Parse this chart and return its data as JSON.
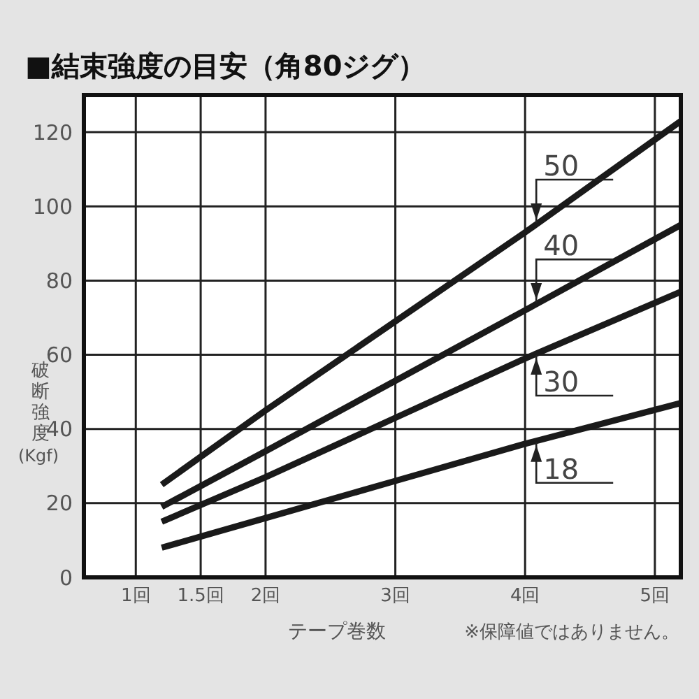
{
  "chart_data": {
    "type": "line",
    "title": "■結束強度の目安（角80ジグ）",
    "xlabel": "テープ巻数",
    "ylabel": "破断強度(Kgf)",
    "annotations": [
      "※保障値ではありません。"
    ],
    "x": [
      1.2,
      2,
      3,
      4,
      5.2
    ],
    "series": [
      {
        "name": "50",
        "color": "#1a1a1a",
        "values": [
          25,
          45,
          69,
          93,
          123
        ]
      },
      {
        "name": "40",
        "color": "#1a1a1a",
        "values": [
          19,
          34,
          53,
          72,
          95
        ]
      },
      {
        "name": "30",
        "color": "#1a1a1a",
        "values": [
          15,
          27,
          43,
          59,
          77
        ]
      },
      {
        "name": "18",
        "color": "#1a1a1a",
        "values": [
          8,
          16,
          26,
          36,
          47
        ]
      }
    ],
    "xlim": [
      0.6,
      5.2
    ],
    "xticks": [
      {
        "value": 1,
        "label": "1回"
      },
      {
        "value": 1.5,
        "label": "1.5回"
      },
      {
        "value": 2,
        "label": "2回"
      },
      {
        "value": 3,
        "label": "3回"
      },
      {
        "value": 4,
        "label": "4回"
      },
      {
        "value": 5,
        "label": "5回"
      }
    ],
    "ylim": [
      0,
      130
    ],
    "yticks": [
      0,
      20,
      40,
      60,
      80,
      100,
      120
    ],
    "grid": true,
    "legend": "right",
    "marker": "none",
    "line_style": "solid"
  }
}
